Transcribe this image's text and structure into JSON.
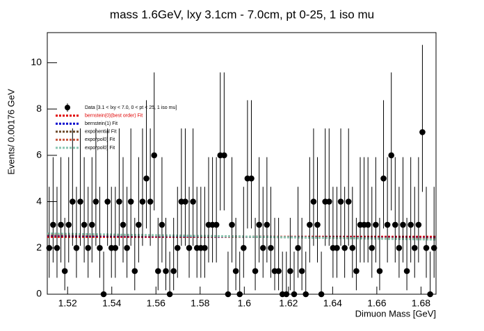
{
  "chart_data": {
    "type": "scatter",
    "title": "mass 1.6GeV, lxy 3.1cm - 7.0cm, pt 0-25, 1 iso mu",
    "x_label": "Dimuon Mass [GeV]",
    "y_label": "Events/ 0.00176 GeV",
    "xlim": [
      1.5108,
      1.6868
    ],
    "ylim": [
      0,
      11.3
    ],
    "xticks": [
      1.52,
      1.54,
      1.56,
      1.58,
      1.6,
      1.62,
      1.64,
      1.66,
      1.68
    ],
    "yticks": [
      0,
      2,
      4,
      6,
      8,
      10
    ],
    "legend": "upper-left",
    "series": [
      {
        "name": "Data [3.1 < lxy < 7.0, 0 < pt < 25, 1 iso mu]",
        "style": "points",
        "color": "#000000",
        "x": [
          1.51168,
          1.51344,
          1.5152,
          1.51696,
          1.51872,
          1.52048,
          1.52224,
          1.524,
          1.52576,
          1.52752,
          1.52928,
          1.53104,
          1.5328,
          1.53456,
          1.53632,
          1.53808,
          1.53984,
          1.5416,
          1.54336,
          1.54512,
          1.54688,
          1.54864,
          1.5504,
          1.55216,
          1.55392,
          1.55568,
          1.55744,
          1.5592,
          1.56096,
          1.56272,
          1.56448,
          1.56624,
          1.568,
          1.56976,
          1.57152,
          1.57328,
          1.57504,
          1.5768,
          1.57856,
          1.58032,
          1.58208,
          1.58384,
          1.5856,
          1.58736,
          1.58912,
          1.59088,
          1.59264,
          1.5944,
          1.59616,
          1.59792,
          1.59968,
          1.60144,
          1.6032,
          1.60496,
          1.60672,
          1.60848,
          1.61024,
          1.612,
          1.61376,
          1.61552,
          1.61728,
          1.61904,
          1.6208,
          1.62256,
          1.62432,
          1.62608,
          1.62784,
          1.6296,
          1.63136,
          1.63312,
          1.63488,
          1.63664,
          1.6384,
          1.64016,
          1.64192,
          1.64368,
          1.64544,
          1.6472,
          1.64896,
          1.65072,
          1.65248,
          1.65424,
          1.656,
          1.65776,
          1.65952,
          1.66128,
          1.66304,
          1.6648,
          1.66656,
          1.66832,
          1.67008,
          1.67184,
          1.6736,
          1.67536,
          1.67712,
          1.67888,
          1.68064,
          1.6824,
          1.68416,
          1.68592
        ],
        "values": [
          2,
          3,
          2,
          3,
          1,
          3,
          4,
          2,
          4,
          3,
          2,
          3,
          4,
          2,
          0,
          4,
          2,
          2,
          4,
          3,
          2,
          4,
          1,
          3,
          4,
          5,
          4,
          6,
          1,
          3,
          1,
          0,
          1,
          2,
          4,
          4,
          2,
          4,
          2,
          2,
          2,
          3,
          3,
          3,
          6,
          6,
          0,
          3,
          1,
          0,
          2,
          5,
          5,
          1,
          3,
          2,
          3,
          2,
          1,
          1,
          0,
          0,
          1,
          0,
          2,
          1,
          0,
          3,
          4,
          3,
          0,
          4,
          4,
          2,
          2,
          4,
          2,
          4,
          2,
          1,
          3,
          3,
          3,
          2,
          3,
          1,
          5,
          3,
          6,
          3,
          2,
          3,
          1,
          3,
          2,
          3,
          7,
          2,
          0,
          2
        ],
        "errors_low": [
          1.29,
          1.63,
          1.29,
          1.63,
          0.83,
          1.63,
          1.91,
          1.29,
          1.91,
          1.63,
          1.29,
          1.63,
          1.91,
          1.29,
          0,
          1.91,
          1.29,
          1.29,
          1.91,
          1.63,
          1.29,
          1.91,
          0.83,
          1.63,
          1.91,
          2.16,
          1.91,
          2.38,
          0.83,
          1.63,
          0.83,
          0,
          0.83,
          1.29,
          1.91,
          1.91,
          1.29,
          1.91,
          1.29,
          1.29,
          1.29,
          1.63,
          1.63,
          1.63,
          2.38,
          2.38,
          0,
          1.63,
          0.83,
          0,
          1.29,
          2.16,
          2.16,
          0.83,
          1.63,
          1.29,
          1.63,
          1.29,
          0.83,
          0.83,
          0,
          0,
          0.83,
          0,
          1.29,
          0.83,
          0,
          1.63,
          1.91,
          1.63,
          0,
          1.91,
          1.91,
          1.29,
          1.29,
          1.91,
          1.29,
          1.91,
          1.29,
          0.83,
          1.63,
          1.63,
          1.63,
          1.29,
          1.63,
          0.83,
          2.16,
          1.63,
          2.38,
          1.63,
          1.29,
          1.63,
          0.83,
          1.63,
          1.29,
          1.63,
          2.58,
          1.29,
          0,
          1.29
        ],
        "errors_high": [
          2.64,
          2.92,
          2.64,
          2.92,
          2.3,
          2.92,
          3.16,
          2.64,
          3.16,
          2.92,
          2.64,
          2.92,
          3.16,
          2.64,
          1.84,
          3.16,
          2.64,
          2.64,
          3.16,
          2.92,
          2.64,
          3.16,
          2.3,
          2.92,
          3.16,
          3.38,
          3.16,
          3.58,
          2.3,
          2.92,
          2.3,
          1.84,
          2.3,
          2.64,
          3.16,
          3.16,
          2.64,
          3.16,
          2.64,
          2.64,
          2.64,
          2.92,
          2.92,
          2.92,
          3.58,
          3.58,
          1.84,
          2.92,
          2.3,
          1.84,
          2.64,
          3.38,
          3.38,
          2.3,
          2.92,
          2.64,
          2.92,
          2.64,
          2.3,
          2.3,
          1.84,
          1.84,
          2.3,
          1.84,
          2.64,
          2.3,
          1.84,
          2.92,
          3.16,
          2.92,
          1.84,
          3.16,
          3.16,
          2.64,
          2.64,
          3.16,
          2.64,
          3.16,
          2.64,
          2.3,
          2.92,
          2.92,
          2.92,
          2.64,
          2.92,
          2.3,
          3.38,
          2.92,
          3.58,
          2.92,
          2.64,
          2.92,
          2.3,
          2.92,
          2.64,
          2.92,
          3.77,
          2.64,
          1.84,
          2.64
        ]
      },
      {
        "name": "bernstein(0)(best order) Fit",
        "style": "dashed",
        "color": "#e00000",
        "x": [
          1.5108,
          1.6868
        ],
        "values": [
          2.48,
          2.48
        ]
      },
      {
        "name": "bernstein(1) Fit",
        "style": "dashed",
        "color": "#0000cc",
        "x": [
          1.5108,
          1.6868
        ],
        "values": [
          2.55,
          2.42
        ]
      },
      {
        "name": "exponential Fit",
        "style": "dashed",
        "color": "#6b4a2a",
        "x": [
          1.5108,
          1.6868
        ],
        "values": [
          2.6,
          2.38
        ]
      },
      {
        "name": "expo*pol0) Fit",
        "style": "dashed",
        "color": "#c8553d",
        "x": [
          1.5108,
          1.6868
        ],
        "values": [
          2.58,
          2.4
        ]
      },
      {
        "name": "expo*pol0) Fit",
        "style": "dashed",
        "color": "#88c4b0",
        "x": [
          1.5108,
          1.6868
        ],
        "values": [
          2.62,
          2.36
        ]
      }
    ]
  }
}
